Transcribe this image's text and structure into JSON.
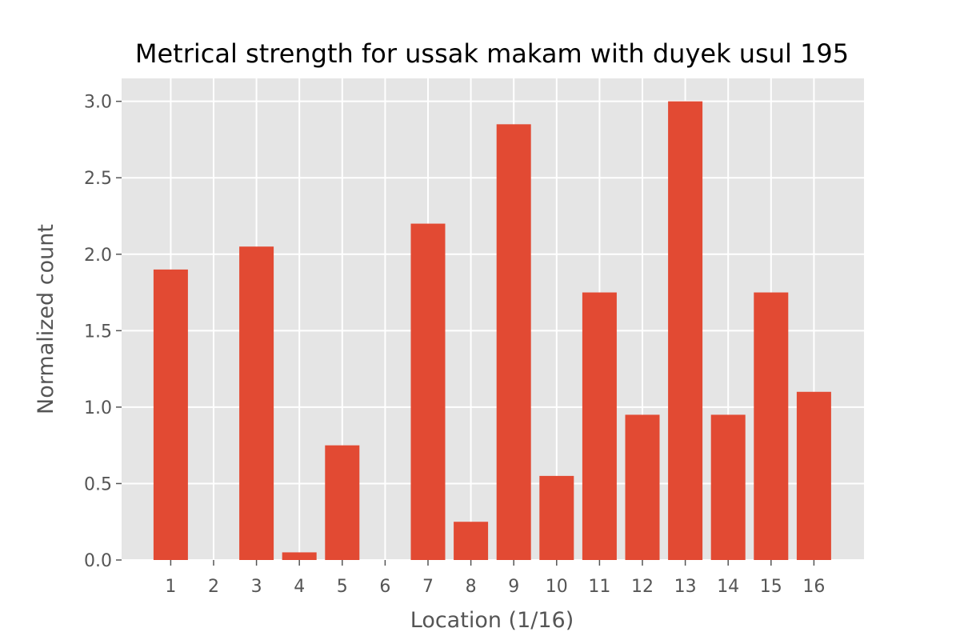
{
  "chart_data": {
    "type": "bar",
    "title": "Metrical strength for ussak makam with duyek usul 195",
    "xlabel": "Location (1/16)",
    "ylabel": "Normalized count",
    "categories": [
      "1",
      "2",
      "3",
      "4",
      "5",
      "6",
      "7",
      "8",
      "9",
      "10",
      "11",
      "12",
      "13",
      "14",
      "15",
      "16"
    ],
    "values": [
      1.9,
      0.0,
      2.05,
      0.05,
      0.75,
      0.0,
      2.2,
      0.25,
      2.85,
      0.55,
      1.75,
      0.95,
      3.0,
      0.95,
      1.75,
      1.1
    ],
    "ylim": [
      0,
      3.15
    ],
    "yticks": [
      "0.0",
      "0.5",
      "1.0",
      "1.5",
      "2.0",
      "2.5",
      "3.0"
    ],
    "grid": true,
    "colors": {
      "bar": "#E24A33",
      "plot_background": "#E5E5E5",
      "grid": "#FFFFFF"
    }
  }
}
